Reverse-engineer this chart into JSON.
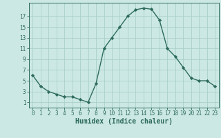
{
  "x": [
    0,
    1,
    2,
    3,
    4,
    5,
    6,
    7,
    8,
    9,
    10,
    11,
    12,
    13,
    14,
    15,
    16,
    17,
    18,
    19,
    20,
    21,
    22,
    23
  ],
  "y": [
    6,
    4,
    3,
    2.5,
    2,
    2,
    1.5,
    1,
    4.5,
    11,
    13,
    15,
    17,
    18.2,
    18.5,
    18.3,
    16.3,
    11,
    9.5,
    7.5,
    5.5,
    5,
    5,
    4
  ],
  "line_color": "#2e6b5e",
  "marker": "D",
  "marker_size": 2.2,
  "bg_color": "#cce8e4",
  "grid_color": "#aacfc9",
  "xlabel": "Humidex (Indice chaleur)",
  "xlabel_fontsize": 7,
  "ylabel_ticks": [
    1,
    3,
    5,
    7,
    9,
    11,
    13,
    15,
    17
  ],
  "xlim": [
    -0.5,
    23.5
  ],
  "ylim": [
    0.0,
    19.5
  ],
  "xticks": [
    0,
    1,
    2,
    3,
    4,
    5,
    6,
    7,
    8,
    9,
    10,
    11,
    12,
    13,
    14,
    15,
    16,
    17,
    18,
    19,
    20,
    21,
    22,
    23
  ],
  "tick_fontsize": 5.5
}
